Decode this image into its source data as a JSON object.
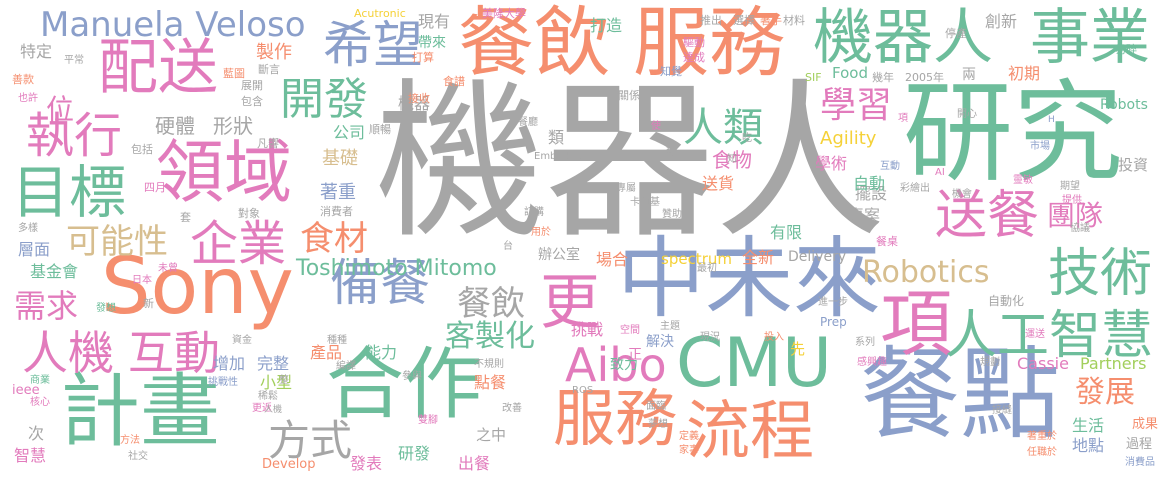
{
  "colors": {
    "gray": "#a6a6a6",
    "orange": "#f58e6e",
    "blue": "#8b9fca",
    "green": "#6dbd9b",
    "pink": "#e27bbc",
    "lime": "#a2cf5c",
    "yellow": "#f5d138",
    "tan": "#d7be8f"
  },
  "words": [
    {
      "text": "機器人",
      "color": "gray"
    },
    {
      "text": "研究",
      "color": "green"
    },
    {
      "text": "餐點",
      "color": "blue"
    },
    {
      "text": "中未來",
      "color": "blue"
    },
    {
      "text": "Sony",
      "color": "orange"
    },
    {
      "text": "計畫",
      "color": "green"
    },
    {
      "text": "合作",
      "color": "green"
    },
    {
      "text": "CMU",
      "color": "green"
    },
    {
      "text": "服務",
      "color": "orange"
    },
    {
      "text": "餐飲",
      "color": "orange"
    },
    {
      "text": "領域",
      "color": "pink"
    },
    {
      "text": "機器人",
      "color": "green"
    },
    {
      "text": "事業",
      "color": "green"
    },
    {
      "text": "配送",
      "color": "pink"
    },
    {
      "text": "項",
      "color": "pink"
    },
    {
      "text": "目標",
      "color": "green"
    },
    {
      "text": "服務",
      "color": "orange"
    },
    {
      "text": "流程",
      "color": "orange"
    },
    {
      "text": "希望",
      "color": "blue"
    },
    {
      "text": "Manuela Veloso",
      "color": "blue"
    },
    {
      "text": "Aibo",
      "color": "pink"
    },
    {
      "text": "執行",
      "color": "pink"
    },
    {
      "text": "更",
      "color": "pink"
    },
    {
      "text": "企業",
      "color": "pink"
    },
    {
      "text": "人工智慧",
      "color": "green"
    },
    {
      "text": "技術",
      "color": "green"
    },
    {
      "text": "送餐",
      "color": "pink"
    },
    {
      "text": "備餐",
      "color": "blue"
    },
    {
      "text": "人機",
      "color": "pink"
    },
    {
      "text": "互動",
      "color": "pink"
    },
    {
      "text": "學習",
      "color": "pink"
    },
    {
      "text": "開發",
      "color": "green"
    },
    {
      "text": "人類",
      "color": "green"
    },
    {
      "text": "Robotics",
      "color": "tan"
    },
    {
      "text": "客製化",
      "color": "green"
    },
    {
      "text": "方式",
      "color": "gray"
    },
    {
      "text": "團隊",
      "color": "pink"
    },
    {
      "text": "食材",
      "color": "orange"
    },
    {
      "text": "可能性",
      "color": "tan"
    },
    {
      "text": "需求",
      "color": "pink"
    },
    {
      "text": "發展",
      "color": "orange"
    },
    {
      "text": "Toshimoto Mitomo",
      "color": "green"
    },
    {
      "text": "餐飲",
      "color": "gray"
    },
    {
      "text": "位",
      "color": "pink"
    },
    {
      "text": "Agility",
      "color": "yellow"
    },
    {
      "text": "食物",
      "color": "pink"
    },
    {
      "text": "硬體",
      "color": "gray"
    },
    {
      "text": "形狀",
      "color": "gray"
    },
    {
      "text": "基礎",
      "color": "tan"
    },
    {
      "text": "著重",
      "color": "blue"
    },
    {
      "text": "公司",
      "color": "green"
    },
    {
      "text": "製作",
      "color": "orange"
    },
    {
      "text": "特定",
      "color": "gray"
    },
    {
      "text": "機器",
      "color": "gray"
    },
    {
      "text": "現有",
      "color": "gray"
    },
    {
      "text": "創新",
      "color": "gray"
    },
    {
      "text": "初期",
      "color": "orange"
    },
    {
      "text": "場合",
      "color": "orange"
    },
    {
      "text": "全新",
      "color": "orange"
    },
    {
      "text": "spectrum",
      "color": "yellow"
    },
    {
      "text": "Delivery",
      "color": "gray"
    },
    {
      "text": "辦公室",
      "color": "gray"
    },
    {
      "text": "有限",
      "color": "green"
    },
    {
      "text": "專案",
      "color": "gray"
    },
    {
      "text": "擺設",
      "color": "gray"
    },
    {
      "text": "學術",
      "color": "pink"
    },
    {
      "text": "自動",
      "color": "green"
    },
    {
      "text": "送貨",
      "color": "orange"
    },
    {
      "text": "投資",
      "color": "gray"
    },
    {
      "text": "層面",
      "color": "blue"
    },
    {
      "text": "基金會",
      "color": "green"
    },
    {
      "text": "增加",
      "color": "blue"
    },
    {
      "text": "能力",
      "color": "green"
    },
    {
      "text": "產品",
      "color": "orange"
    },
    {
      "text": "完整",
      "color": "blue"
    },
    {
      "text": "挑戰",
      "color": "pink"
    },
    {
      "text": "解決",
      "color": "blue"
    },
    {
      "text": "點餐",
      "color": "orange"
    },
    {
      "text": "小型",
      "color": "lime"
    },
    {
      "text": "Cassie",
      "color": "pink"
    },
    {
      "text": "Partners",
      "color": "lime"
    },
    {
      "text": "生活",
      "color": "green"
    },
    {
      "text": "地點",
      "color": "blue"
    },
    {
      "text": "成果",
      "color": "orange"
    },
    {
      "text": "過程",
      "color": "gray"
    },
    {
      "text": "消費品",
      "color": "blue"
    },
    {
      "text": "Develop",
      "color": "orange"
    },
    {
      "text": "研發",
      "color": "green"
    },
    {
      "text": "出餐",
      "color": "pink"
    },
    {
      "text": "發表",
      "color": "pink"
    },
    {
      "text": "智慧",
      "color": "pink"
    },
    {
      "text": "次",
      "color": "gray"
    },
    {
      "text": "ieee",
      "color": "pink"
    },
    {
      "text": "打造",
      "color": "green"
    },
    {
      "text": "推出",
      "color": "gray"
    },
    {
      "text": "選擇",
      "color": "gray"
    },
    {
      "text": "著手",
      "color": "orange"
    },
    {
      "text": "材料",
      "color": "gray"
    },
    {
      "text": "停產",
      "color": "gray"
    },
    {
      "text": "易碎",
      "color": "green"
    },
    {
      "text": "Food",
      "color": "green"
    },
    {
      "text": "SIF",
      "color": "lime"
    },
    {
      "text": "幾年",
      "color": "gray"
    },
    {
      "text": "2005年",
      "color": "gray"
    },
    {
      "text": "兩",
      "color": "gray"
    },
    {
      "text": "Robots",
      "color": "green"
    },
    {
      "text": "Acutronic",
      "color": "yellow"
    },
    {
      "text": "美隆大學",
      "color": "pink"
    },
    {
      "text": "帶來",
      "color": "green"
    },
    {
      "text": "驅動",
      "color": "pink"
    },
    {
      "text": "達成",
      "color": "pink"
    },
    {
      "text": "打算",
      "color": "orange"
    },
    {
      "text": "知覺",
      "color": "blue"
    },
    {
      "text": "食譜",
      "color": "orange"
    },
    {
      "text": "接收",
      "color": "orange"
    },
    {
      "text": "關係",
      "color": "gray"
    },
    {
      "text": "平常",
      "color": "gray"
    },
    {
      "text": "藍圖",
      "color": "orange"
    },
    {
      "text": "斷言",
      "color": "gray"
    },
    {
      "text": "善款",
      "color": "orange"
    },
    {
      "text": "也許",
      "color": "pink"
    },
    {
      "text": "展開",
      "color": "gray"
    },
    {
      "text": "包含",
      "color": "gray"
    },
    {
      "text": "順暢",
      "color": "gray"
    },
    {
      "text": "凡響",
      "color": "gray"
    },
    {
      "text": "包括",
      "color": "gray"
    },
    {
      "text": "四月",
      "color": "pink"
    },
    {
      "text": "對象",
      "color": "gray"
    },
    {
      "text": "消費者",
      "color": "gray"
    },
    {
      "text": "套",
      "color": "gray"
    },
    {
      "text": "多樣",
      "color": "gray"
    },
    {
      "text": "未曾",
      "color": "pink"
    },
    {
      "text": "日本",
      "color": "pink"
    },
    {
      "text": "發想",
      "color": "green"
    },
    {
      "text": "新",
      "color": "gray"
    },
    {
      "text": "資金",
      "color": "gray"
    },
    {
      "text": "種種",
      "color": "gray"
    },
    {
      "text": "挑戰性",
      "color": "blue"
    },
    {
      "text": "商業",
      "color": "green"
    },
    {
      "text": "核心",
      "color": "pink"
    },
    {
      "text": "稀鬆",
      "color": "gray"
    },
    {
      "text": "更返",
      "color": "pink"
    },
    {
      "text": "人機",
      "color": "gray"
    },
    {
      "text": "方法",
      "color": "orange"
    },
    {
      "text": "社交",
      "color": "gray"
    },
    {
      "text": "編譯",
      "color": "gray"
    },
    {
      "text": "參與",
      "color": "gray"
    },
    {
      "text": "整",
      "color": "gray"
    },
    {
      "text": "雙腳",
      "color": "pink"
    },
    {
      "text": "之中",
      "color": "gray"
    },
    {
      "text": "改善",
      "color": "gray"
    },
    {
      "text": "ROS",
      "color": "gray"
    },
    {
      "text": "不規則",
      "color": "gray"
    },
    {
      "text": "致力",
      "color": "green"
    },
    {
      "text": "夢想",
      "color": "gray"
    },
    {
      "text": "定義",
      "color": "orange"
    },
    {
      "text": "家事",
      "color": "orange"
    },
    {
      "text": "面臨",
      "color": "gray"
    },
    {
      "text": "主題",
      "color": "gray"
    },
    {
      "text": "現況",
      "color": "gray"
    },
    {
      "text": "空間",
      "color": "pink"
    },
    {
      "text": "正",
      "color": "pink"
    },
    {
      "text": "投入",
      "color": "orange"
    },
    {
      "text": "先",
      "color": "yellow"
    },
    {
      "text": "系列",
      "color": "gray"
    },
    {
      "text": "感興趣",
      "color": "pink"
    },
    {
      "text": "規劃",
      "color": "gray"
    },
    {
      "text": "接縫",
      "color": "gray"
    },
    {
      "text": "著重於",
      "color": "orange"
    },
    {
      "text": "任職於",
      "color": "orange"
    },
    {
      "text": "運送",
      "color": "pink"
    },
    {
      "text": "自動化",
      "color": "gray"
    },
    {
      "text": "Prep",
      "color": "blue"
    },
    {
      "text": "進一步",
      "color": "gray"
    },
    {
      "text": "最初",
      "color": "gray"
    },
    {
      "text": "用於",
      "color": "orange"
    },
    {
      "text": "台",
      "color": "gray"
    },
    {
      "text": "餐桌",
      "color": "pink"
    },
    {
      "text": "協議",
      "color": "gray"
    },
    {
      "text": "提供",
      "color": "pink"
    },
    {
      "text": "期望",
      "color": "gray"
    },
    {
      "text": "靈敏",
      "color": "pink"
    },
    {
      "text": "機會",
      "color": "gray"
    },
    {
      "text": "彩繪出",
      "color": "gray"
    },
    {
      "text": "互動",
      "color": "blue"
    },
    {
      "text": "AI",
      "color": "pink"
    },
    {
      "text": "市場",
      "color": "blue"
    },
    {
      "text": "開心",
      "color": "gray"
    },
    {
      "text": "H",
      "color": "blue"
    },
    {
      "text": "項",
      "color": "pink"
    },
    {
      "text": "吃",
      "color": "gray"
    },
    {
      "text": "使",
      "color": "pink"
    },
    {
      "text": "知",
      "color": "gray"
    },
    {
      "text": "難",
      "color": "gray"
    },
    {
      "text": "類",
      "color": "gray"
    },
    {
      "text": "餐廳",
      "color": "gray"
    },
    {
      "text": "Embodied",
      "color": "gray"
    },
    {
      "text": "專屬",
      "color": "gray"
    },
    {
      "text": "卡內基",
      "color": "gray"
    },
    {
      "text": "訂購",
      "color": "gray"
    },
    {
      "text": "贊助",
      "color": "gray"
    }
  ]
}
